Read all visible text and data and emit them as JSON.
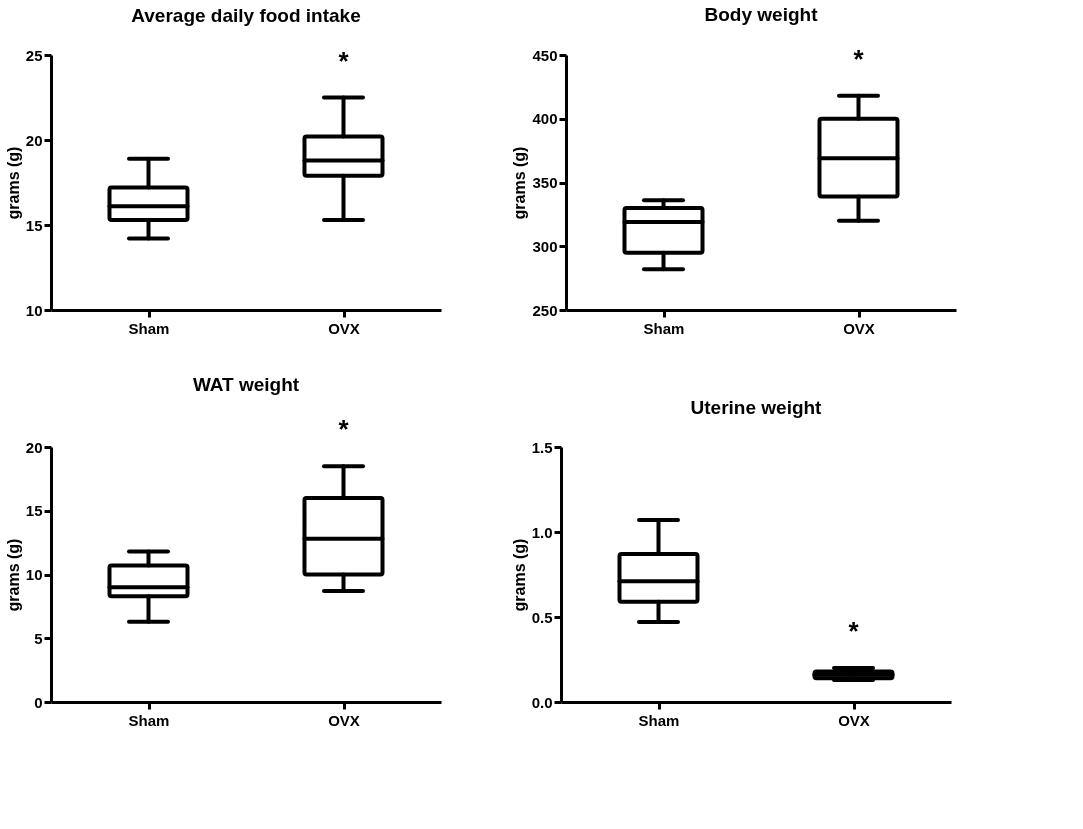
{
  "chart_data": [
    {
      "type": "box",
      "title": "Average daily food intake",
      "ylabel": "grams (g)",
      "categories": [
        "Sham",
        "OVX"
      ],
      "color": "#000000",
      "boxes": [
        {
          "low": 14.2,
          "q1": 15.3,
          "median": 16.1,
          "q3": 17.2,
          "high": 18.9
        },
        {
          "low": 15.3,
          "q1": 17.9,
          "median": 18.8,
          "q3": 20.2,
          "high": 22.5
        }
      ],
      "ylim": [
        10,
        25
      ],
      "yticks": [
        10,
        15,
        20,
        25
      ],
      "annotations": [
        "*"
      ]
    },
    {
      "type": "box",
      "title": "Body weight",
      "ylabel": "grams (g)",
      "categories": [
        "Sham",
        "OVX"
      ],
      "color": "#000000",
      "boxes": [
        {
          "low": 282,
          "q1": 295,
          "median": 319,
          "q3": 330,
          "high": 336
        },
        {
          "low": 320,
          "q1": 339,
          "median": 369,
          "q3": 400,
          "high": 418
        }
      ],
      "ylim": [
        250,
        450
      ],
      "yticks": [
        250,
        300,
        350,
        400,
        450
      ],
      "annotations": [
        "*"
      ]
    },
    {
      "type": "box",
      "title": "WAT weight",
      "ylabel": "grams (g)",
      "categories": [
        "Sham",
        "OVX"
      ],
      "color": "#000000",
      "boxes": [
        {
          "low": 6.3,
          "q1": 8.3,
          "median": 9.0,
          "q3": 10.7,
          "high": 11.8
        },
        {
          "low": 8.7,
          "q1": 10.0,
          "median": 12.8,
          "q3": 16.0,
          "high": 18.5
        }
      ],
      "ylim": [
        0,
        20
      ],
      "yticks": [
        0,
        5,
        10,
        15,
        20
      ],
      "annotations": [
        "*"
      ]
    },
    {
      "type": "box",
      "title": "Uterine weight",
      "ylabel": "grams (g)",
      "categories": [
        "Sham",
        "OVX"
      ],
      "color": "#000000",
      "boxes": [
        {
          "low": 0.47,
          "q1": 0.59,
          "median": 0.71,
          "q3": 0.87,
          "high": 1.07
        },
        {
          "low": 0.13,
          "q1": 0.14,
          "median": 0.16,
          "q3": 0.18,
          "high": 0.2
        }
      ],
      "ylim": [
        0,
        1.5
      ],
      "yticks": [
        {
          "value": 0,
          "label": "0.0"
        },
        0.5,
        {
          "value": 1,
          "label": "1.0"
        },
        1.5
      ],
      "annotations": [
        "*"
      ]
    }
  ]
}
